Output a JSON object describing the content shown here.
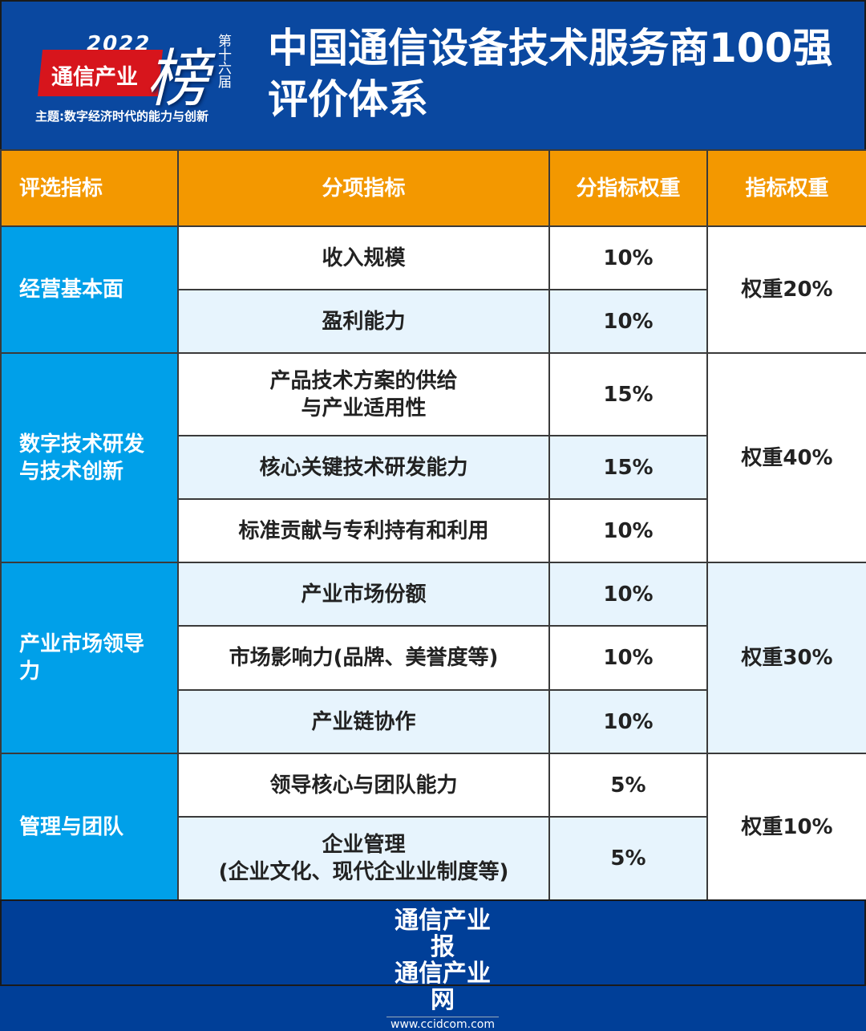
{
  "header": {
    "logo": {
      "year": "2022",
      "brand": "通信产业",
      "bang": "榜",
      "edition": "第十六届",
      "theme": "主题:数字经济时代的能力与创新"
    },
    "title_line1": "中国通信设备技术服务商100强",
    "title_line2": "评价体系"
  },
  "table": {
    "columns": [
      "评选指标",
      "分项指标",
      "分指标权重",
      "指标权重"
    ],
    "groups": [
      {
        "category": "经营基本面",
        "weight": "权重20%",
        "items": [
          {
            "name": "收入规模",
            "weight": "10%"
          },
          {
            "name": "盈利能力",
            "weight": "10%"
          }
        ]
      },
      {
        "category": "数字技术研发与技术创新",
        "weight": "权重40%",
        "items": [
          {
            "name": "产品技术方案的供给\n与产业适用性",
            "weight": "15%"
          },
          {
            "name": "核心关键技术研发能力",
            "weight": "15%"
          },
          {
            "name": "标准贡献与专利持有和利用",
            "weight": "10%"
          }
        ]
      },
      {
        "category": "产业市场领导力",
        "weight": "权重30%",
        "items": [
          {
            "name": "产业市场份额",
            "weight": "10%"
          },
          {
            "name": "市场影响力(品牌、美誉度等)",
            "weight": "10%"
          },
          {
            "name": "产业链协作",
            "weight": "10%"
          }
        ]
      },
      {
        "category": "管理与团队",
        "weight": "权重10%",
        "items": [
          {
            "name": "领导核心与团队能力",
            "weight": "5%"
          },
          {
            "name": "企业管理\n(企业文化、现代企业业制度等)",
            "weight": "5%"
          }
        ]
      }
    ]
  },
  "footer": {
    "line1": "通信产业报",
    "line2": "通信产业网",
    "url": "www.ccidcom.com"
  },
  "colors": {
    "header_bg": "#0a48a0",
    "table_header": "#f39800",
    "category_bg": "#00a0e9",
    "row_alt": "#e7f4fd"
  }
}
